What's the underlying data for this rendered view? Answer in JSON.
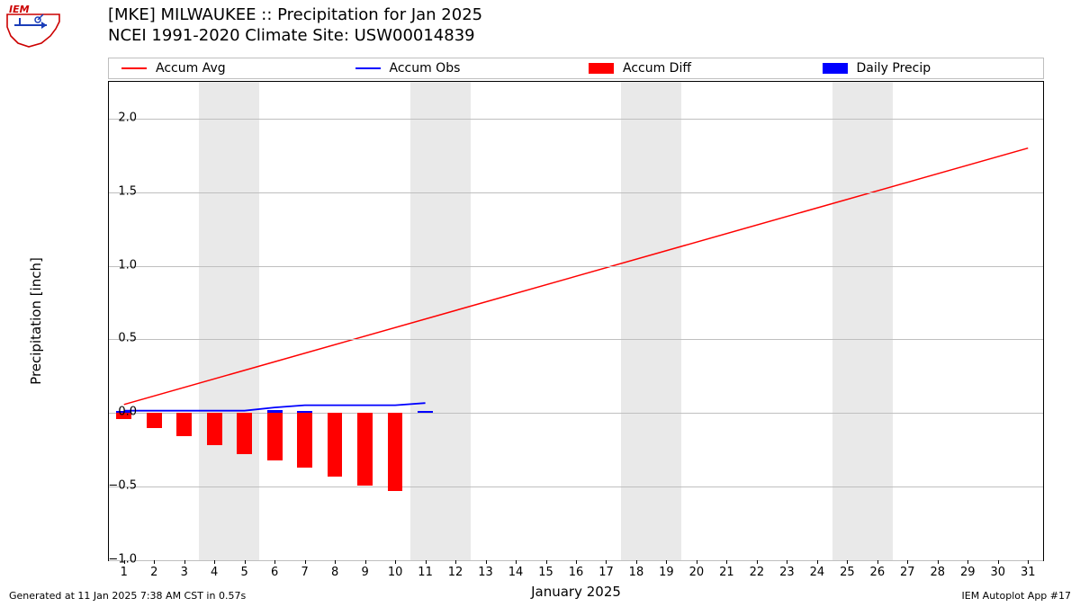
{
  "logo": {
    "text_top": "IEM",
    "outline_color": "#cc0000",
    "accent_color": "#1a3db8"
  },
  "title": {
    "line1": "[MKE] MILWAUKEE :: Precipitation for Jan 2025",
    "line2": "NCEI 1991-2020 Climate Site: USW00014839",
    "fontsize": 18,
    "color": "#000000"
  },
  "chart": {
    "type": "line+bar",
    "background_color": "#ffffff",
    "grid_color": "#bfbfbf",
    "border_color": "#000000",
    "weekend_band_color": "#e9e9e9",
    "weekend_bands": [
      [
        3.5,
        5.5
      ],
      [
        10.5,
        12.5
      ],
      [
        17.5,
        19.5
      ],
      [
        24.5,
        26.5
      ]
    ],
    "xlabel": "January 2025",
    "ylabel": "Precipitation [inch]",
    "label_fontsize": 15,
    "tick_fontsize": 13,
    "xlim": [
      0.5,
      31.5
    ],
    "ylim": [
      -1.0,
      2.25
    ],
    "yticks": [
      -1.0,
      -0.5,
      0.0,
      0.5,
      1.0,
      1.5,
      2.0
    ],
    "ytick_labels": [
      "−1.0",
      "−0.5",
      "0.0",
      "0.5",
      "1.0",
      "1.5",
      "2.0"
    ],
    "xticks": [
      1,
      2,
      3,
      4,
      5,
      6,
      7,
      8,
      9,
      10,
      11,
      12,
      13,
      14,
      15,
      16,
      17,
      18,
      19,
      20,
      21,
      22,
      23,
      24,
      25,
      26,
      27,
      28,
      29,
      30,
      31
    ],
    "accum_avg": {
      "label": "Accum Avg",
      "color": "#ff0000",
      "line_width": 1.5,
      "x": [
        1,
        31
      ],
      "y": [
        0.058,
        1.8
      ]
    },
    "accum_obs": {
      "label": "Accum Obs",
      "color": "#0000ff",
      "line_width": 1.8,
      "x": [
        1,
        2,
        3,
        4,
        5,
        6,
        7,
        8,
        9,
        10,
        11
      ],
      "y": [
        0.016,
        0.016,
        0.016,
        0.016,
        0.016,
        0.038,
        0.053,
        0.053,
        0.053,
        0.053,
        0.068
      ]
    },
    "accum_diff": {
      "label": "Accum Diff",
      "color": "#ff0000",
      "bar_width": 0.5,
      "x": [
        1,
        2,
        3,
        4,
        5,
        6,
        7,
        8,
        9,
        10
      ],
      "y": [
        -0.04,
        -0.1,
        -0.16,
        -0.22,
        -0.28,
        -0.32,
        -0.37,
        -0.43,
        -0.49,
        -0.53
      ]
    },
    "daily_precip": {
      "label": "Daily Precip",
      "color": "#0000ff",
      "bar_width": 0.5,
      "x": [
        1,
        2,
        3,
        4,
        5,
        6,
        7,
        8,
        9,
        10,
        11
      ],
      "y": [
        0.016,
        0.0,
        0.0,
        0.0,
        0.0,
        0.022,
        0.015,
        0.0,
        0.0,
        0.0,
        0.015
      ]
    }
  },
  "legend": {
    "border_color": "#bfbfbf",
    "background_color": "#ffffff",
    "fontsize": 14,
    "items": [
      {
        "kind": "line",
        "color": "#ff0000",
        "label": "Accum Avg"
      },
      {
        "kind": "line",
        "color": "#0000ff",
        "label": "Accum Obs"
      },
      {
        "kind": "patch",
        "color": "#ff0000",
        "label": "Accum Diff"
      },
      {
        "kind": "patch",
        "color": "#0000ff",
        "label": "Daily Precip"
      }
    ]
  },
  "footer": {
    "left": "Generated at 11 Jan 2025 7:38 AM CST in 0.57s",
    "right": "IEM Autoplot App #17",
    "fontsize": 11
  }
}
